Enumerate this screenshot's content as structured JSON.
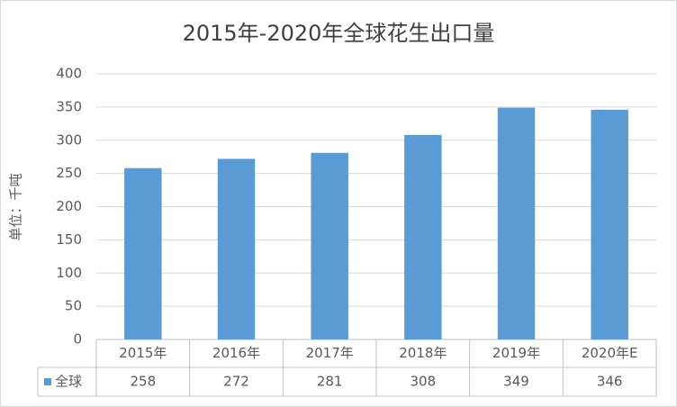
{
  "chart_data": {
    "type": "bar",
    "title": "2015年-2020年全球花生出口量",
    "y_label": "单位：千吨",
    "categories": [
      "2015年",
      "2016年",
      "2017年",
      "2018年",
      "2019年",
      "2020年E"
    ],
    "series": [
      {
        "name": "全球",
        "color": "#5b9bd5",
        "values": [
          258,
          272,
          281,
          308,
          349,
          346
        ]
      }
    ],
    "ylim": [
      0,
      400
    ],
    "yticks": [
      0,
      50,
      100,
      150,
      200,
      250,
      300,
      350,
      400
    ],
    "grid": true,
    "data_table": true
  }
}
